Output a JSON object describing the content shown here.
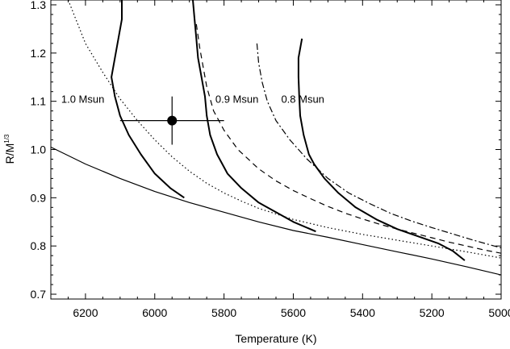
{
  "chart_data": {
    "type": "line",
    "xlabel": "Temperature (K)",
    "ylabel": "R/M",
    "ylabel_sup": "1/3",
    "xlim": [
      6300,
      5000
    ],
    "ylim": [
      0.69,
      1.31
    ],
    "xticks": [
      6200,
      6000,
      5800,
      5600,
      5400,
      5200,
      5000
    ],
    "xtick_labels": [
      "6200",
      "6000",
      "5800",
      "5600",
      "5400",
      "5200",
      "5000"
    ],
    "yticks": [
      0.7,
      0.8,
      0.9,
      1.0,
      1.1,
      1.2,
      1.3
    ],
    "ytick_labels": [
      "0.7",
      "0.8",
      "0.9",
      "1.0",
      "1.1",
      "1.2",
      "1.3"
    ],
    "series": [
      {
        "style": "solid-thick",
        "x": [
          6095,
          6095,
          6105,
          6115,
          6125,
          6115,
          6100,
          6075,
          6040,
          6000,
          5955,
          5915
        ],
        "y": [
          1.31,
          1.27,
          1.23,
          1.19,
          1.15,
          1.11,
          1.07,
          1.03,
          0.99,
          0.95,
          0.92,
          0.9
        ]
      },
      {
        "style": "solid-thick",
        "x": [
          5890,
          5885,
          5880,
          5875,
          5865,
          5855,
          5850,
          5840,
          5820,
          5790,
          5750,
          5700,
          5650,
          5600,
          5535
        ],
        "y": [
          1.31,
          1.27,
          1.23,
          1.19,
          1.15,
          1.11,
          1.07,
          1.03,
          0.99,
          0.95,
          0.92,
          0.89,
          0.87,
          0.85,
          0.83
        ]
      },
      {
        "style": "solid-thick",
        "x": [
          5575,
          5585,
          5585,
          5583,
          5580,
          5570,
          5555,
          5540,
          5510,
          5470,
          5420,
          5360,
          5300,
          5240,
          5180,
          5140,
          5105
        ],
        "y": [
          1.23,
          1.19,
          1.15,
          1.11,
          1.07,
          1.03,
          0.99,
          0.97,
          0.94,
          0.91,
          0.88,
          0.855,
          0.835,
          0.82,
          0.805,
          0.79,
          0.77
        ]
      },
      {
        "style": "dotted",
        "x": [
          6250,
          6200,
          6150,
          6100,
          6050,
          6000,
          5950,
          5900,
          5850,
          5800,
          5750,
          5700,
          5600,
          5500,
          5400,
          5300,
          5200,
          5100,
          5000
        ],
        "y": [
          1.31,
          1.22,
          1.16,
          1.105,
          1.06,
          1.02,
          0.985,
          0.955,
          0.93,
          0.91,
          0.893,
          0.878,
          0.855,
          0.838,
          0.824,
          0.812,
          0.8,
          0.788,
          0.775
        ]
      },
      {
        "style": "dashed",
        "x": [
          5880,
          5870,
          5860,
          5850,
          5830,
          5800,
          5760,
          5700,
          5650,
          5600,
          5550,
          5500,
          5450,
          5400,
          5350,
          5300,
          5250,
          5200,
          5150,
          5100,
          5050,
          5000
        ],
        "y": [
          1.26,
          1.21,
          1.17,
          1.13,
          1.08,
          1.04,
          1.0,
          0.96,
          0.935,
          0.915,
          0.898,
          0.882,
          0.868,
          0.856,
          0.845,
          0.835,
          0.826,
          0.817,
          0.808,
          0.8,
          0.792,
          0.785
        ]
      },
      {
        "style": "dashdot",
        "x": [
          5705,
          5700,
          5690,
          5675,
          5650,
          5610,
          5560,
          5500,
          5440,
          5380,
          5320,
          5260,
          5200,
          5140,
          5080,
          5020,
          5000
        ],
        "y": [
          1.22,
          1.18,
          1.14,
          1.1,
          1.06,
          1.02,
          0.98,
          0.94,
          0.91,
          0.888,
          0.868,
          0.852,
          0.838,
          0.825,
          0.812,
          0.8,
          0.796
        ]
      },
      {
        "style": "solid-thin",
        "x": [
          6300,
          6200,
          6100,
          6000,
          5900,
          5800,
          5700,
          5600,
          5500,
          5400,
          5300,
          5200,
          5100,
          5000
        ],
        "y": [
          1.005,
          0.97,
          0.94,
          0.913,
          0.89,
          0.87,
          0.85,
          0.832,
          0.818,
          0.803,
          0.788,
          0.773,
          0.757,
          0.74
        ]
      }
    ],
    "datapoint": {
      "x": 5950,
      "y": 1.06,
      "xerr": 150,
      "yerr": 0.05
    },
    "annotations": [
      {
        "text": "1.0 Msun",
        "x": 6270,
        "y": 1.105
      },
      {
        "text": "0.9 Msun",
        "x": 5825,
        "y": 1.105
      },
      {
        "text": "0.8 Msun",
        "x": 5635,
        "y": 1.105
      }
    ]
  }
}
